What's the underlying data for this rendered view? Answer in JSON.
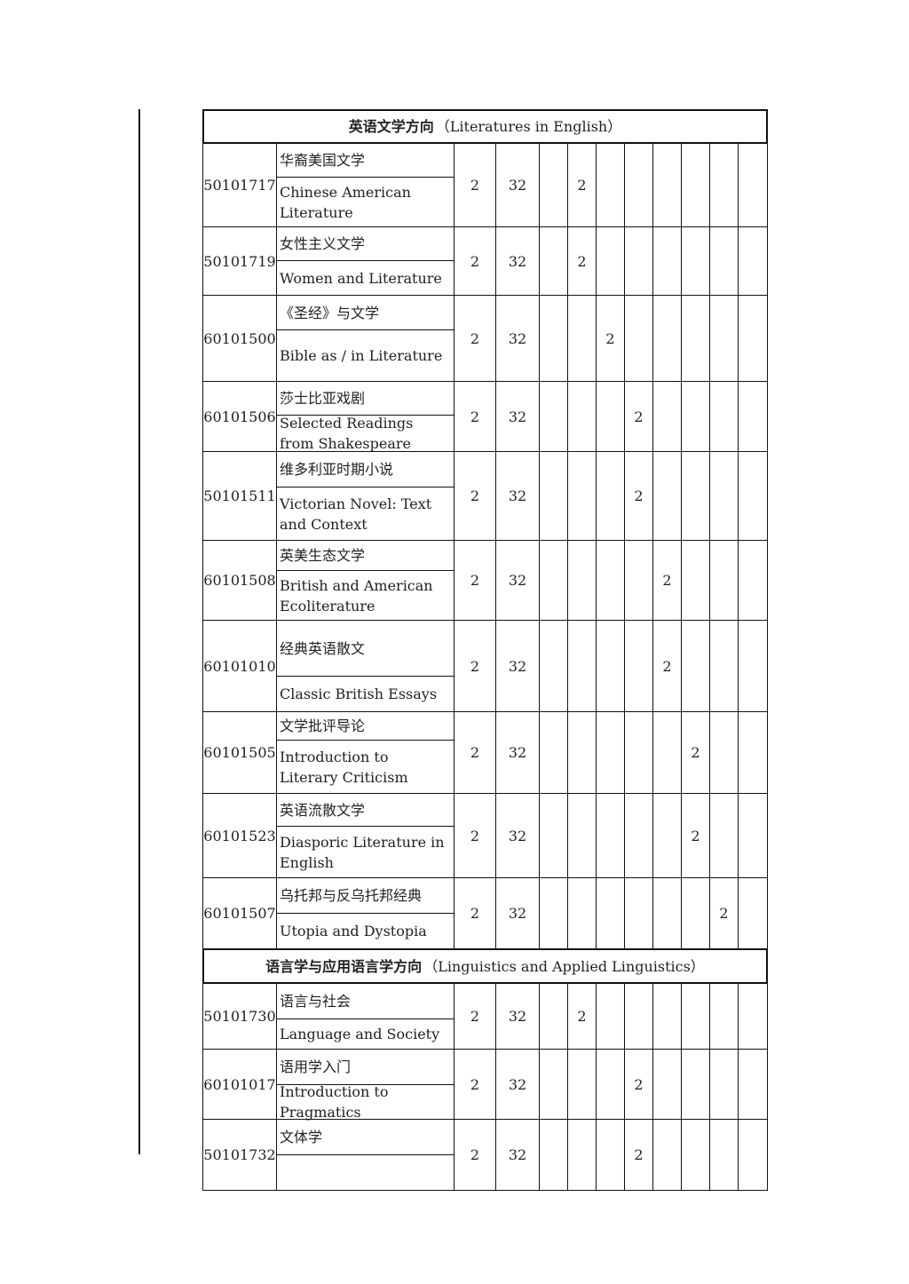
{
  "sections": [
    {
      "title_cn": "英语文学方向",
      "title_en": "（Literatures in English）",
      "courses": [
        {
          "code": "50101717",
          "name_cn": "华裔美国文学",
          "name_en": "Chinese American Literature",
          "credits": "2",
          "hours": "32",
          "term_index": 1,
          "term_value": "2"
        },
        {
          "code": "50101719",
          "name_cn": "女性主义文学",
          "name_en": "Women and Literature",
          "credits": "2",
          "hours": "32",
          "term_index": 1,
          "term_value": "2"
        },
        {
          "code": "60101500",
          "name_cn": "《圣经》与文学",
          "name_en": "Bible as / in Literature",
          "credits": "2",
          "hours": "32",
          "term_index": 2,
          "term_value": "2"
        },
        {
          "code": "60101506",
          "name_cn": "莎士比亚戏剧",
          "name_en": "Selected Readings from Shakespeare",
          "credits": "2",
          "hours": "32",
          "term_index": 3,
          "term_value": "2"
        },
        {
          "code": "50101511",
          "name_cn": "维多利亚时期小说",
          "name_en": "Victorian Novel: Text and Context",
          "credits": "2",
          "hours": "32",
          "term_index": 3,
          "term_value": "2"
        },
        {
          "code": "60101508",
          "name_cn": "英美生态文学",
          "name_en": "British and American Ecoliterature",
          "credits": "2",
          "hours": "32",
          "term_index": 4,
          "term_value": "2"
        },
        {
          "code": "60101010",
          "name_cn": "经典英语散文",
          "name_en": "Classic British Essays",
          "credits": "2",
          "hours": "32",
          "term_index": 4,
          "term_value": "2"
        },
        {
          "code": "60101505",
          "name_cn": "文学批评导论",
          "name_en": "Introduction to Literary Criticism",
          "credits": "2",
          "hours": "32",
          "term_index": 5,
          "term_value": "2"
        },
        {
          "code": "60101523",
          "name_cn": "英语流散文学",
          "name_en": "Diasporic Literature in English",
          "credits": "2",
          "hours": "32",
          "term_index": 5,
          "term_value": "2"
        },
        {
          "code": "60101507",
          "name_cn": "乌托邦与反乌托邦经典",
          "name_en": "Utopia and Dystopia",
          "credits": "2",
          "hours": "32",
          "term_index": 6,
          "term_value": "2"
        }
      ]
    },
    {
      "title_cn": "语言学与应用语言学方向",
      "title_en": "（Linguistics and Applied Linguistics）",
      "courses": [
        {
          "code": "50101730",
          "name_cn": "语言与社会",
          "name_en": "Language and Society",
          "credits": "2",
          "hours": "32",
          "term_index": 1,
          "term_value": "2"
        },
        {
          "code": "60101017",
          "name_cn": "语用学入门",
          "name_en": "Introduction to Pragmatics",
          "credits": "2",
          "hours": "32",
          "term_index": 3,
          "term_value": "2"
        },
        {
          "code": "50101732",
          "name_cn": "文体学",
          "name_en": "",
          "credits": "2",
          "hours": "32",
          "term_index": 3,
          "term_value": "2"
        }
      ]
    }
  ]
}
